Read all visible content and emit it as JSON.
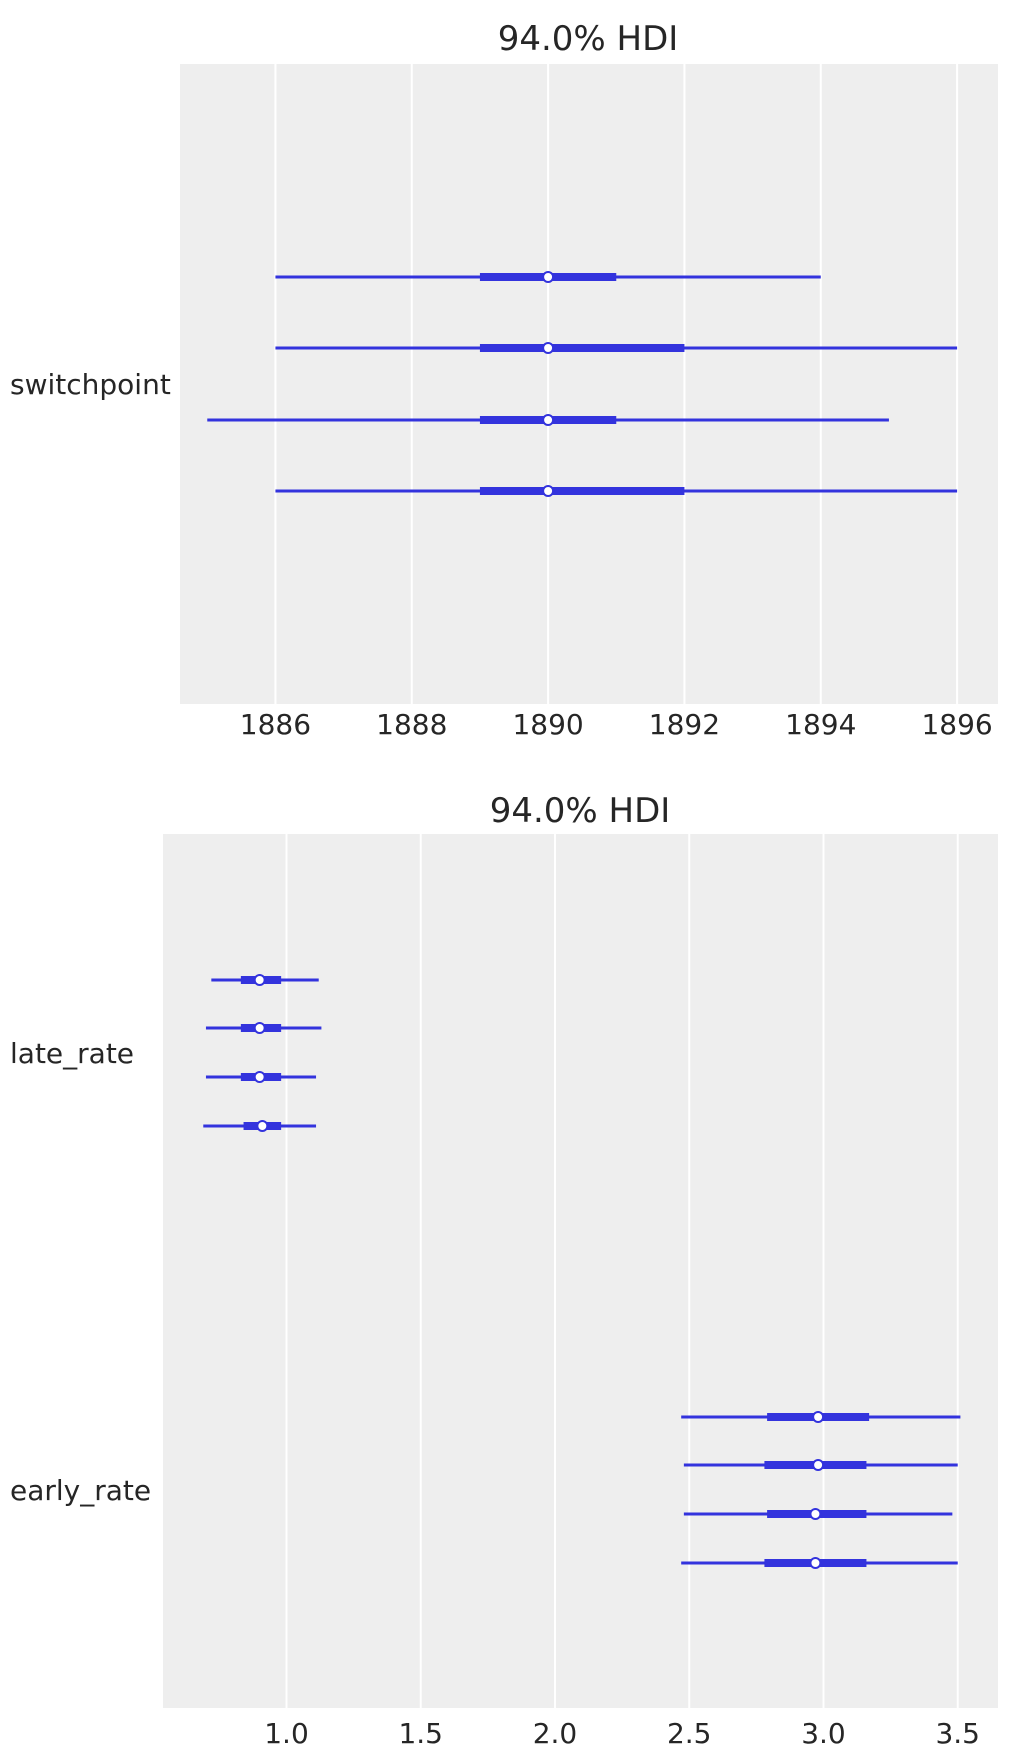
{
  "chart_data": [
    {
      "type": "forest",
      "title": "94.0% HDI",
      "xlim": [
        1884.6,
        1896.6
      ],
      "xticks": [
        1886,
        1888,
        1890,
        1892,
        1894,
        1896
      ],
      "xtick_labels": [
        "1886",
        "1888",
        "1890",
        "1892",
        "1894",
        "1896"
      ],
      "grid": true,
      "parameters": [
        {
          "name": "switchpoint",
          "chains": [
            {
              "hdi": [
                1886,
                1894
              ],
              "iqr": [
                1889,
                1891
              ],
              "median": 1890
            },
            {
              "hdi": [
                1886,
                1896
              ],
              "iqr": [
                1889,
                1892
              ],
              "median": 1890
            },
            {
              "hdi": [
                1885,
                1895
              ],
              "iqr": [
                1889,
                1891
              ],
              "median": 1890
            },
            {
              "hdi": [
                1886,
                1896
              ],
              "iqr": [
                1889,
                1892
              ],
              "median": 1890
            }
          ]
        }
      ]
    },
    {
      "type": "forest",
      "title": "94.0% HDI",
      "xlim": [
        0.54,
        3.65
      ],
      "xticks": [
        1.0,
        1.5,
        2.0,
        2.5,
        3.0,
        3.5
      ],
      "xtick_labels": [
        "1.0",
        "1.5",
        "2.0",
        "2.5",
        "3.0",
        "3.5"
      ],
      "grid": true,
      "parameters": [
        {
          "name": "late_rate",
          "chains": [
            {
              "hdi": [
                0.72,
                1.12
              ],
              "iqr": [
                0.83,
                0.98
              ],
              "median": 0.9
            },
            {
              "hdi": [
                0.7,
                1.13
              ],
              "iqr": [
                0.83,
                0.98
              ],
              "median": 0.9
            },
            {
              "hdi": [
                0.7,
                1.11
              ],
              "iqr": [
                0.83,
                0.98
              ],
              "median": 0.9
            },
            {
              "hdi": [
                0.69,
                1.11
              ],
              "iqr": [
                0.84,
                0.98
              ],
              "median": 0.91
            }
          ]
        },
        {
          "name": "early_rate",
          "chains": [
            {
              "hdi": [
                2.47,
                3.51
              ],
              "iqr": [
                2.79,
                3.17
              ],
              "median": 2.98
            },
            {
              "hdi": [
                2.48,
                3.5
              ],
              "iqr": [
                2.78,
                3.16
              ],
              "median": 2.98
            },
            {
              "hdi": [
                2.48,
                3.48
              ],
              "iqr": [
                2.79,
                3.16
              ],
              "median": 2.97
            },
            {
              "hdi": [
                2.47,
                3.5
              ],
              "iqr": [
                2.78,
                3.16
              ],
              "median": 2.97
            }
          ]
        }
      ]
    }
  ]
}
